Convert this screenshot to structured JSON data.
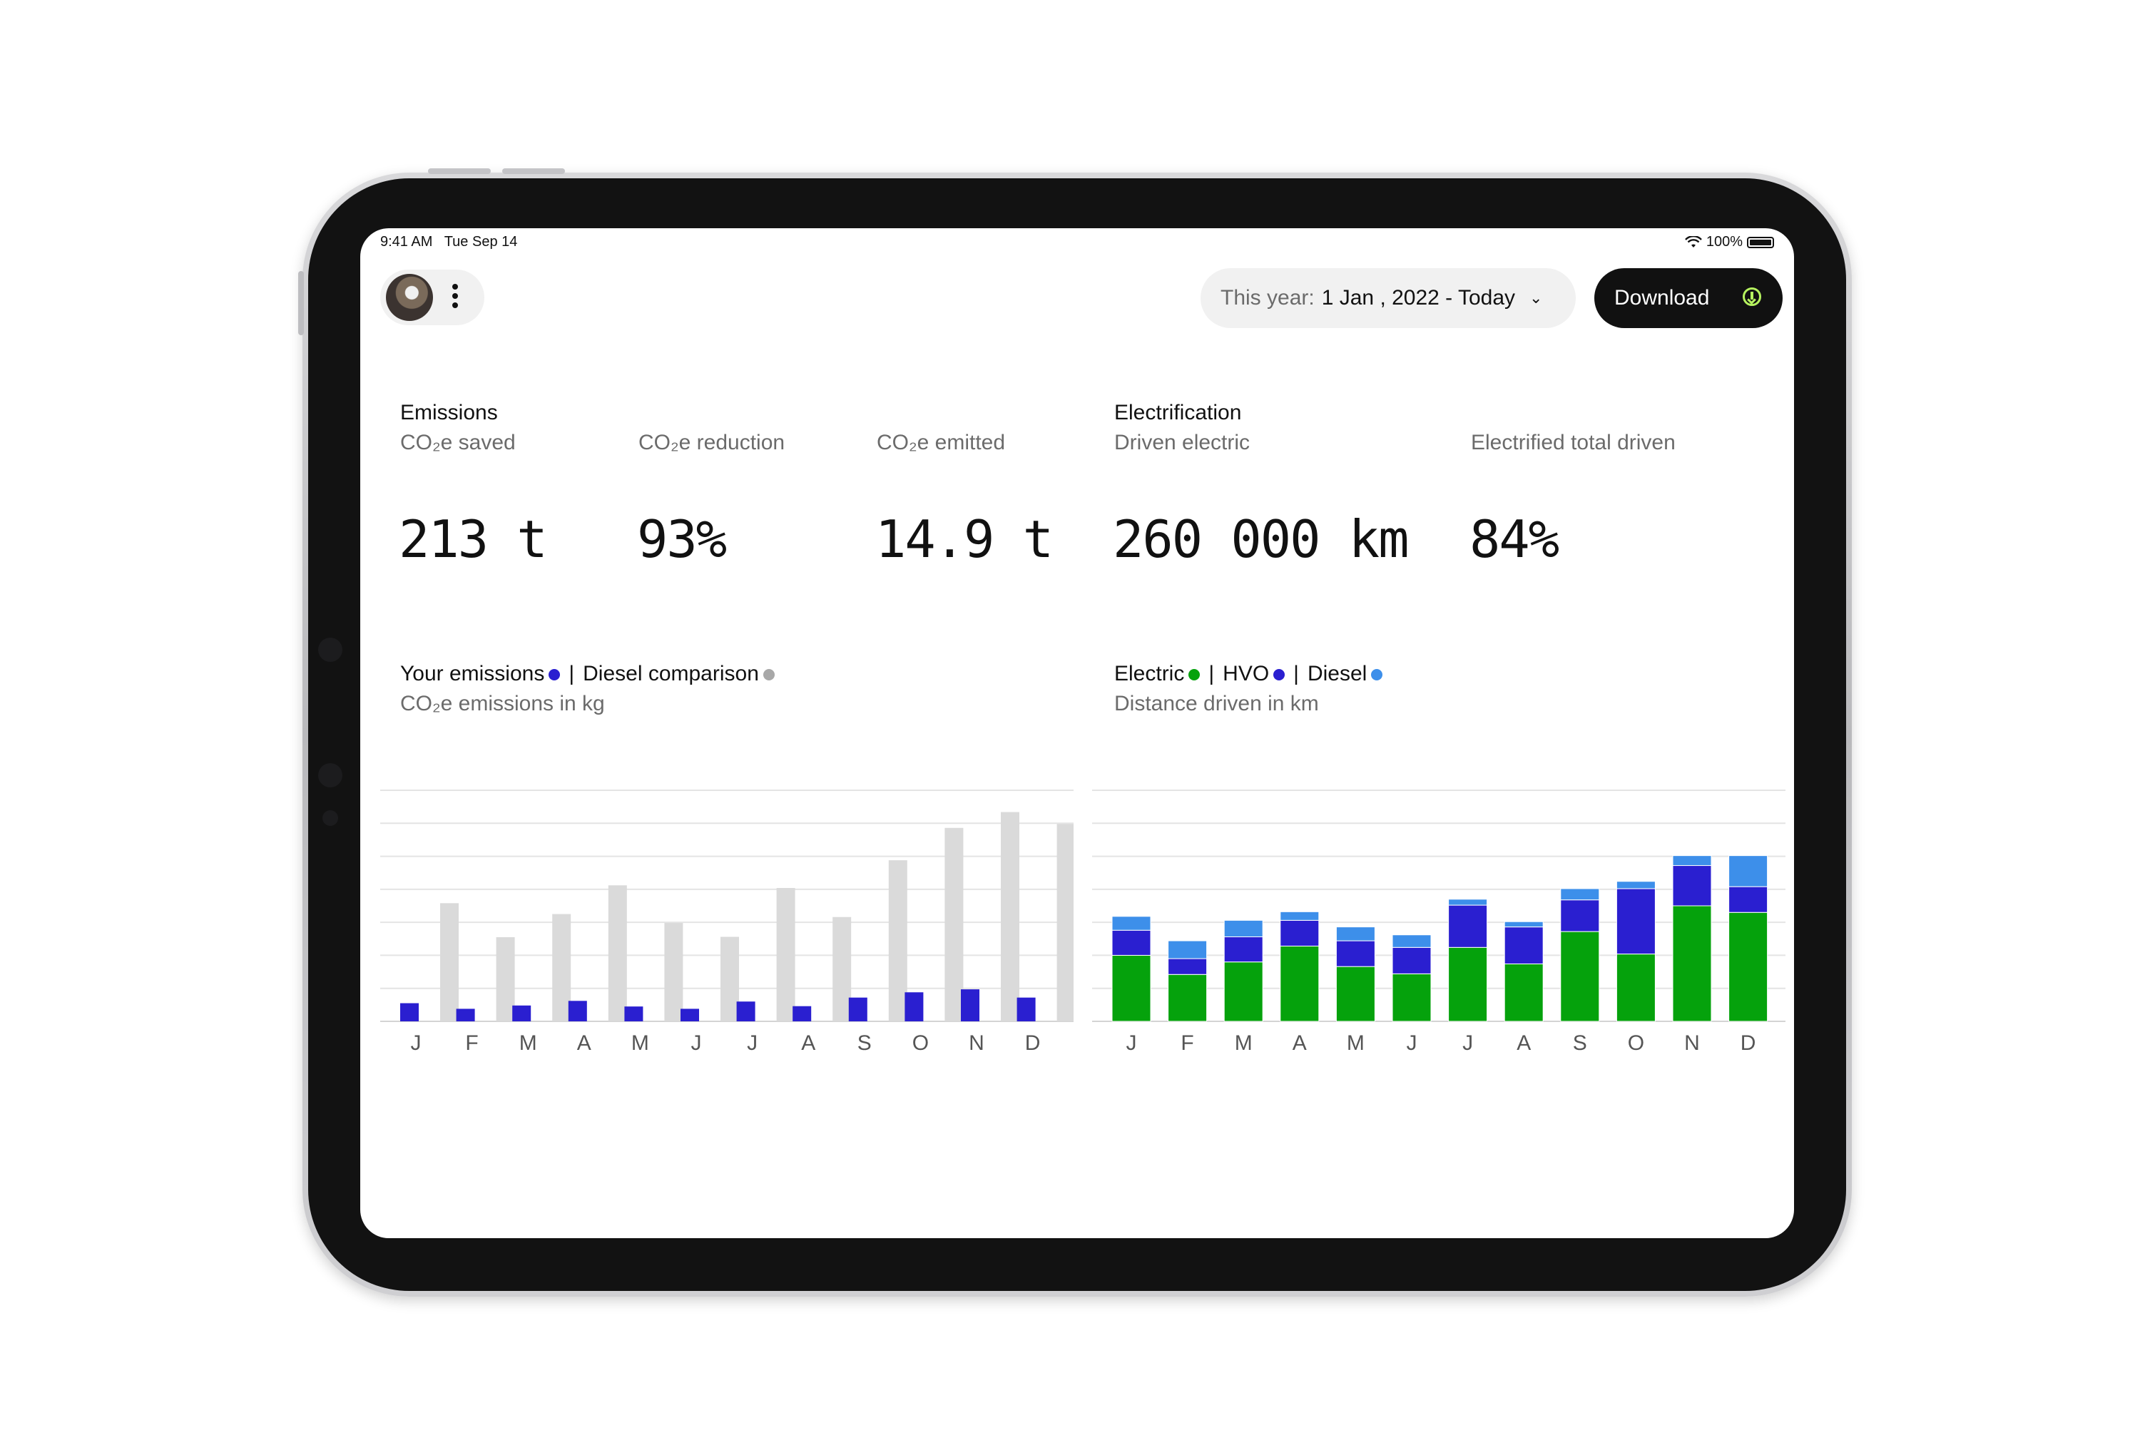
{
  "status_bar": {
    "time": "9:41 AM",
    "date": "Tue Sep 14",
    "battery": "100%"
  },
  "header": {
    "date_range_prefix": "This year:",
    "date_range_value": "1 Jan , 2022 - Today",
    "download_label": "Download"
  },
  "emissions": {
    "title": "Emissions",
    "saved_label": "CO₂e saved",
    "saved_value": "213 t",
    "reduction_label": "CO₂e reduction",
    "reduction_value": "93%",
    "emitted_label": "CO₂e emitted",
    "emitted_value": "14.9 t"
  },
  "electrification": {
    "title": "Electrification",
    "driven_label": "Driven electric",
    "driven_value": "260 000 km",
    "total_label": "Electrified total driven",
    "total_value": "84%"
  },
  "colors": {
    "blue": "#2a1fd0",
    "grey": "#dadada",
    "grey_dot": "#a8a8a8",
    "green": "#05a20c",
    "light_blue": "#3d8fea",
    "accent": "#b6f35f"
  },
  "chart_data": [
    {
      "type": "bar",
      "legend": [
        "Your emissions",
        "Diesel comparison"
      ],
      "subtitle": "CO₂e emissions in kg",
      "categories": [
        "J",
        "F",
        "M",
        "A",
        "M",
        "J",
        "J",
        "A",
        "S",
        "O",
        "N",
        "D"
      ],
      "series": [
        {
          "name": "Your emissions",
          "values": [
            0.55,
            0.38,
            0.48,
            0.62,
            0.45,
            0.38,
            0.6,
            0.46,
            0.72,
            0.88,
            0.97,
            0.72
          ]
        },
        {
          "name": "Diesel comparison",
          "values": [
            3.58,
            2.55,
            3.25,
            4.12,
            2.98,
            2.56,
            4.04,
            3.16,
            4.88,
            5.86,
            6.34,
            5.98
          ]
        }
      ],
      "ylim": [
        0,
        7
      ],
      "grid": true
    },
    {
      "type": "bar",
      "stacked": true,
      "legend": [
        "Electric",
        "HVO",
        "Diesel"
      ],
      "subtitle": "Distance driven in km",
      "categories": [
        "J",
        "F",
        "M",
        "A",
        "M",
        "J",
        "J",
        "A",
        "S",
        "O",
        "N",
        "D"
      ],
      "series": [
        {
          "name": "Electric",
          "values": [
            2.0,
            1.42,
            1.8,
            2.28,
            1.66,
            1.44,
            2.24,
            1.74,
            2.72,
            2.04,
            3.5,
            3.3
          ]
        },
        {
          "name": "HVO",
          "values": [
            0.76,
            0.48,
            0.76,
            0.78,
            0.78,
            0.8,
            1.28,
            1.12,
            0.96,
            1.98,
            1.22,
            0.78
          ]
        },
        {
          "name": "Diesel",
          "values": [
            0.42,
            0.54,
            0.5,
            0.26,
            0.42,
            0.38,
            0.18,
            0.16,
            0.34,
            0.22,
            0.3,
            0.94
          ]
        }
      ],
      "ylim": [
        0,
        7
      ],
      "grid": true
    }
  ]
}
